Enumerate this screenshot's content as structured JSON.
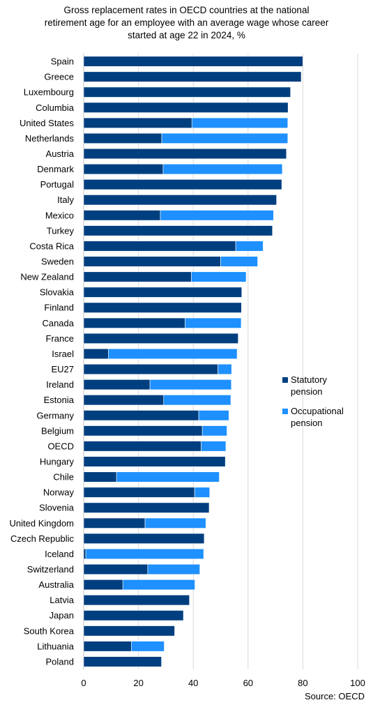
{
  "chart_data": {
    "type": "bar",
    "orientation": "horizontal",
    "stacked": true,
    "title_lines": [
      "Gross replacement rates in OECD countries at the national",
      "retirement age for an employee with an average wage whose career",
      "started at age 22 in 2024, %"
    ],
    "categories": [
      "Spain",
      "Greece",
      "Luxembourg",
      "Columbia",
      "United States",
      "Netherlands",
      "Austria",
      "Denmark",
      "Portugal",
      "Italy",
      "Mexico",
      "Turkey",
      "Costa Rica",
      "Sweden",
      "New Zealand",
      "Slovakia",
      "Finland",
      "Canada",
      "France",
      "Israel",
      "EU27",
      "Ireland",
      "Estonia",
      "Germany",
      "Belgium",
      "OECD",
      "Hungary",
      "Chile",
      "Norway",
      "Slovenia",
      "United Kingdom",
      "Czech Republic",
      "Iceland",
      "Switzerland",
      "Australia",
      "Latvia",
      "Japan",
      "South Korea",
      "Lithuania",
      "Poland"
    ],
    "series": [
      {
        "name": "Statutory pension",
        "color": "#003f7f",
        "values": [
          80.0,
          79.4,
          75.5,
          74.6,
          39.5,
          28.5,
          74.0,
          29.0,
          72.3,
          70.4,
          28.0,
          68.9,
          55.5,
          50.0,
          39.3,
          57.7,
          57.6,
          37.0,
          56.4,
          9.0,
          49.0,
          24.2,
          29.2,
          42.0,
          43.3,
          42.9,
          51.7,
          12.0,
          40.5,
          45.8,
          22.4,
          44.0,
          0.8,
          23.4,
          14.3,
          38.6,
          36.4,
          33.2,
          17.4,
          28.4
        ]
      },
      {
        "name": "Occupational pension",
        "color": "#1e90ff",
        "values": [
          0,
          0,
          0,
          0,
          35.0,
          46.0,
          0,
          43.5,
          0,
          0,
          41.3,
          0,
          10.0,
          13.5,
          20.0,
          0,
          0,
          20.5,
          0,
          47.0,
          5.0,
          29.7,
          24.5,
          11.0,
          9.0,
          9.0,
          0,
          37.5,
          5.5,
          0,
          22.2,
          0,
          43.0,
          19.0,
          26.3,
          0,
          0,
          0,
          12.0,
          0
        ]
      }
    ],
    "xlim": [
      0,
      100
    ],
    "xticks": [
      "0",
      "20",
      "40",
      "60",
      "80",
      "100"
    ],
    "grid": "vertical",
    "legend_position": "right",
    "legend": [
      {
        "lines": [
          "Statutory",
          "pension"
        ],
        "color": "#003f7f"
      },
      {
        "lines": [
          "Occupational",
          "pension"
        ],
        "color": "#1e90ff"
      }
    ],
    "source": "Source: OECD"
  }
}
